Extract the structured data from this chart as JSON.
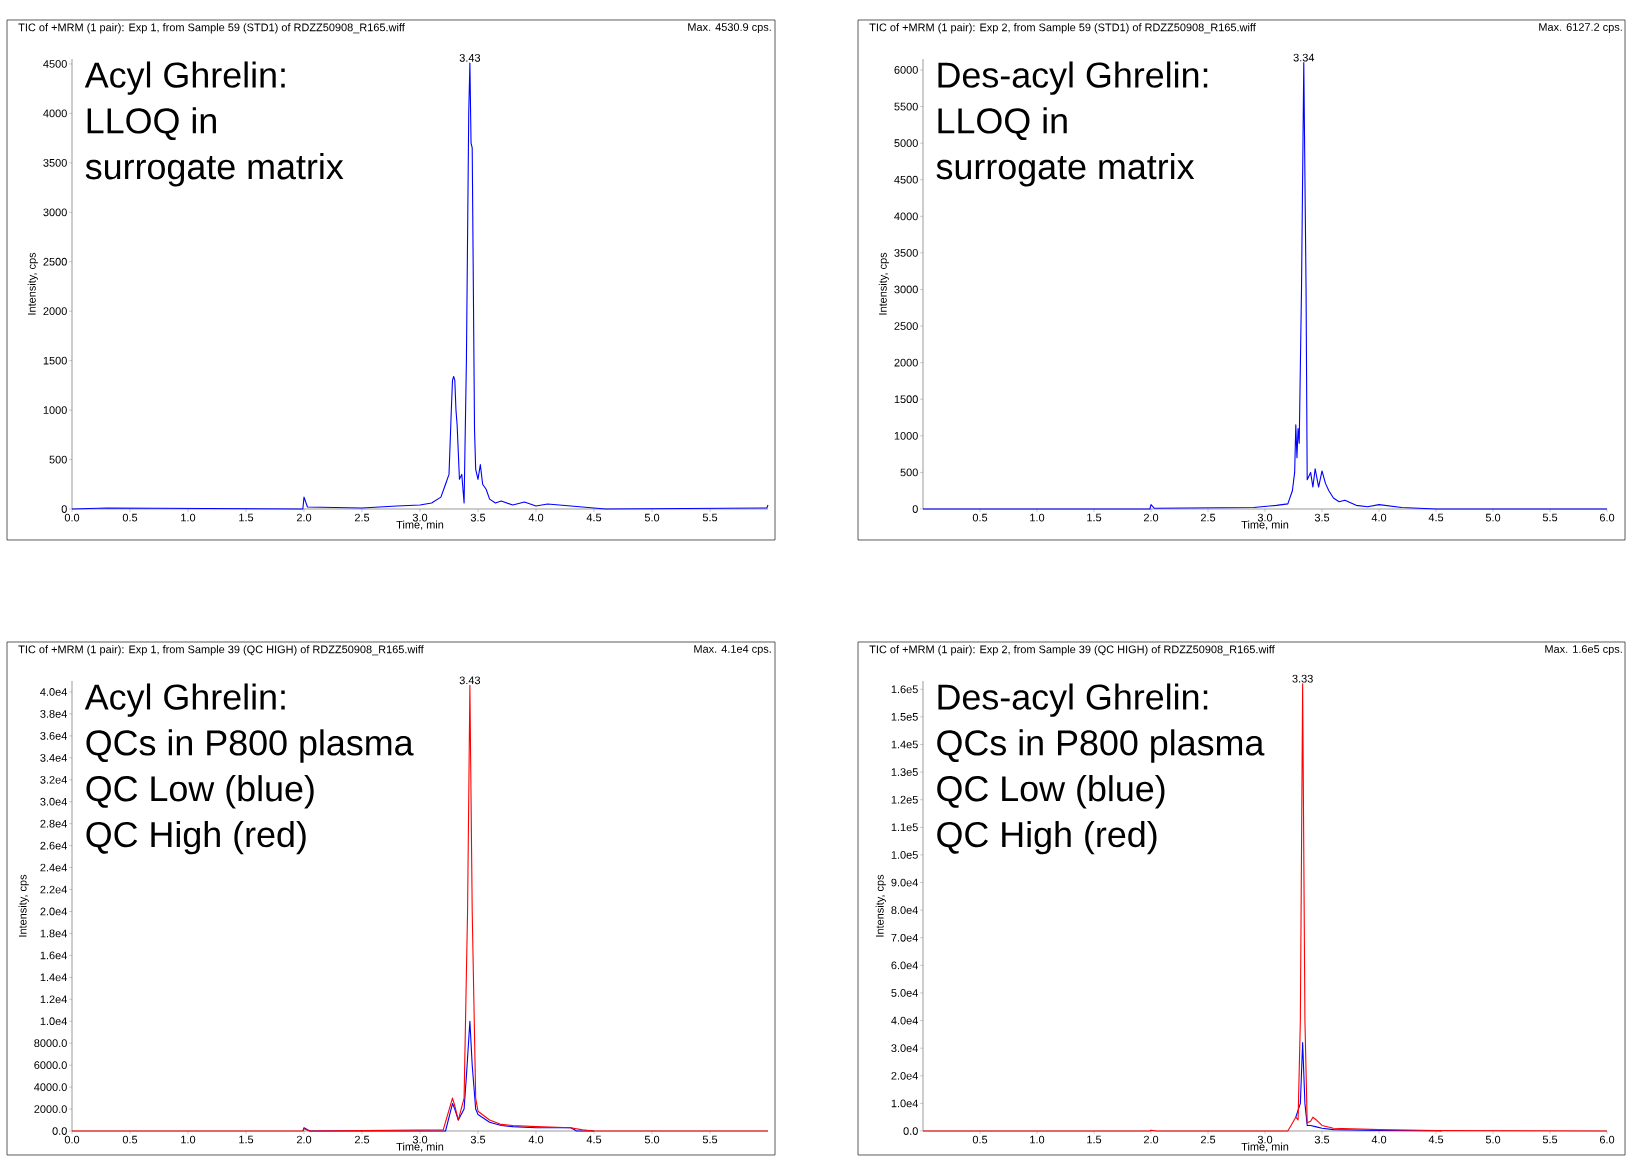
{
  "chart_data": [
    {
      "type": "line",
      "title": "TIC of +MRM (1 pair): Exp 1, from Sample 59 (STD1) of RDZZ50908_R165.wiff",
      "xlabel": "Time, min",
      "ylabel": "Intensity, cps",
      "annotations": [
        "Max. 4530.9 cps.",
        "Acyl Ghrelin:",
        "LLOQ in",
        "surrogate matrix",
        {
          "text": "3.43",
          "x": 3.43,
          "y": 4510
        }
      ],
      "xlim": [
        0,
        6.0
      ],
      "ylim": [
        0,
        4550
      ],
      "xticks": [
        {
          "value": 0,
          "label": "0.0"
        },
        0.5,
        {
          "value": 1,
          "label": "1.0"
        },
        1.5,
        {
          "value": 2,
          "label": "2.0"
        },
        2.5,
        {
          "value": 3,
          "label": "3.0"
        },
        3.5,
        {
          "value": 4,
          "label": "4.0"
        },
        4.5,
        {
          "value": 5,
          "label": "5.0"
        },
        5.5
      ],
      "yticks": [
        0,
        500,
        1000,
        1500,
        2000,
        2500,
        3000,
        3500,
        4000,
        4500
      ],
      "series": [
        {
          "color": "#0000ff",
          "x": [
            0,
            0.3,
            1.99,
            2.0,
            2.03,
            2.5,
            2.8,
            3.0,
            3.1,
            3.18,
            3.22,
            3.25,
            3.27,
            3.28,
            3.29,
            3.3,
            3.31,
            3.32,
            3.34,
            3.36,
            3.38,
            3.4,
            3.42,
            3.43,
            3.44,
            3.45,
            3.47,
            3.48,
            3.5,
            3.52,
            3.54,
            3.57,
            3.6,
            3.65,
            3.7,
            3.8,
            3.9,
            4.0,
            4.1,
            4.4,
            4.6,
            5.99,
            6.0
          ],
          "values": [
            0,
            10,
            0,
            120,
            20,
            10,
            30,
            40,
            60,
            120,
            250,
            350,
            1000,
            1300,
            1340,
            1300,
            1000,
            850,
            300,
            350,
            60,
            1500,
            4000,
            4510,
            3700,
            3650,
            800,
            400,
            300,
            450,
            250,
            200,
            100,
            60,
            80,
            40,
            70,
            30,
            50,
            20,
            0,
            10,
            40
          ]
        }
      ]
    },
    {
      "type": "line",
      "title": "TIC of +MRM (1 pair): Exp 2, from Sample 59 (STD1) of RDZZ50908_R165.wiff",
      "xlabel": "Time, min",
      "ylabel": "Intensity, cps",
      "annotations": [
        "Max. 6127.2 cps.",
        "Des-acyl Ghrelin:",
        "LLOQ in",
        "surrogate matrix",
        {
          "text": "3.34",
          "x": 3.34,
          "y": 6100
        }
      ],
      "xlim": [
        0,
        6.0
      ],
      "ylim": [
        0,
        6150
      ],
      "xticks": [
        0.5,
        {
          "value": 1,
          "label": "1.0"
        },
        1.5,
        {
          "value": 2,
          "label": "2.0"
        },
        2.5,
        {
          "value": 3,
          "label": "3.0"
        },
        3.5,
        {
          "value": 4,
          "label": "4.0"
        },
        4.5,
        {
          "value": 5,
          "label": "5.0"
        },
        5.5,
        {
          "value": 6,
          "label": "6.0"
        }
      ],
      "yticks": [
        0,
        500,
        1000,
        1500,
        2000,
        2500,
        3000,
        3500,
        4000,
        4500,
        5000,
        5500,
        6000
      ],
      "series": [
        {
          "color": "#0000ff",
          "x": [
            0,
            1.99,
            2.0,
            2.03,
            2.9,
            3.1,
            3.2,
            3.24,
            3.26,
            3.27,
            3.28,
            3.29,
            3.3,
            3.32,
            3.34,
            3.36,
            3.37,
            3.4,
            3.42,
            3.44,
            3.47,
            3.5,
            3.53,
            3.56,
            3.6,
            3.65,
            3.7,
            3.8,
            3.9,
            4.0,
            4.2,
            4.5,
            6.0
          ],
          "values": [
            0,
            0,
            60,
            10,
            20,
            50,
            70,
            250,
            500,
            1150,
            700,
            1100,
            900,
            3000,
            6100,
            3000,
            400,
            500,
            300,
            550,
            300,
            520,
            350,
            250,
            150,
            100,
            120,
            50,
            30,
            60,
            20,
            0,
            0
          ]
        }
      ]
    },
    {
      "type": "line",
      "title": "TIC of +MRM (1 pair): Exp 1, from Sample 39 (QC HIGH) of RDZZ50908_R165.wiff",
      "xlabel": "Time, min",
      "ylabel": "Intensity, cps",
      "annotations": [
        "Max. 4.1e4 cps.",
        "Acyl Ghrelin:",
        "QCs in P800 plasma",
        "QC Low (blue)",
        "QC High (red)",
        {
          "text": "3.43",
          "x": 3.43,
          "y": 40600
        }
      ],
      "xlim": [
        0,
        6.0
      ],
      "ylim": [
        0,
        41000
      ],
      "xticks": [
        {
          "value": 0,
          "label": "0.0"
        },
        0.5,
        {
          "value": 1,
          "label": "1.0"
        },
        1.5,
        {
          "value": 2,
          "label": "2.0"
        },
        2.5,
        {
          "value": 3,
          "label": "3.0"
        },
        3.5,
        {
          "value": 4,
          "label": "4.0"
        },
        4.5,
        {
          "value": 5,
          "label": "5.0"
        },
        5.5
      ],
      "yticks": [
        {
          "value": 0,
          "label": "0.0"
        },
        {
          "value": 2000,
          "label": "2000.0"
        },
        {
          "value": 4000,
          "label": "4000.0"
        },
        {
          "value": 6000,
          "label": "6000.0"
        },
        {
          "value": 8000,
          "label": "8000.0"
        },
        {
          "value": 10000,
          "label": "1.0e4"
        },
        {
          "value": 12000,
          "label": "1.2e4"
        },
        {
          "value": 14000,
          "label": "1.4e4"
        },
        {
          "value": 16000,
          "label": "1.6e4"
        },
        {
          "value": 18000,
          "label": "1.8e4"
        },
        {
          "value": 20000,
          "label": "2.0e4"
        },
        {
          "value": 22000,
          "label": "2.2e4"
        },
        {
          "value": 24000,
          "label": "2.4e4"
        },
        {
          "value": 26000,
          "label": "2.6e4"
        },
        {
          "value": 28000,
          "label": "2.8e4"
        },
        {
          "value": 30000,
          "label": "3.0e4"
        },
        {
          "value": 32000,
          "label": "3.2e4"
        },
        {
          "value": 34000,
          "label": "3.4e4"
        },
        {
          "value": 36000,
          "label": "3.6e4"
        },
        {
          "value": 38000,
          "label": "3.8e4"
        },
        {
          "value": 40000,
          "label": "4.0e4"
        }
      ],
      "series": [
        {
          "color": "#0000ff",
          "x": [
            1.99,
            2.0,
            2.05,
            3.22,
            3.28,
            3.3,
            3.33,
            3.38,
            3.4,
            3.43,
            3.45,
            3.48,
            3.5,
            3.6,
            3.7,
            3.8,
            4.0,
            4.3,
            4.35,
            4.5
          ],
          "values": [
            0,
            300,
            0,
            0,
            2500,
            2000,
            1000,
            2000,
            5000,
            10000,
            6000,
            2000,
            1500,
            800,
            500,
            400,
            300,
            300,
            0,
            0
          ]
        },
        {
          "color": "#ff0000",
          "x": [
            0,
            1.99,
            2.0,
            2.05,
            3.2,
            3.28,
            3.3,
            3.33,
            3.38,
            3.41,
            3.43,
            3.45,
            3.48,
            3.5,
            3.6,
            3.7,
            3.8,
            4.0,
            4.3,
            4.4,
            4.5,
            4.55,
            6.0
          ],
          "values": [
            0,
            0,
            200,
            0,
            100,
            3000,
            2300,
            1000,
            3000,
            20000,
            40600,
            20000,
            3000,
            1800,
            1000,
            600,
            500,
            400,
            300,
            100,
            0,
            0,
            0
          ]
        }
      ]
    },
    {
      "type": "line",
      "title": "TIC of +MRM (1 pair): Exp 2, from Sample 39 (QC HIGH) of RDZZ50908_R165.wiff",
      "xlabel": "Time, min",
      "ylabel": "Intensity, cps",
      "annotations": [
        "Max. 1.6e5 cps.",
        "Des-acyl Ghrelin:",
        "QCs in P800 plasma",
        "QC Low (blue)",
        "QC High (red)",
        {
          "text": "3.33",
          "x": 3.33,
          "y": 162000
        }
      ],
      "xlim": [
        0,
        6.0
      ],
      "ylim": [
        0,
        163000
      ],
      "xticks": [
        0.5,
        {
          "value": 1,
          "label": "1.0"
        },
        1.5,
        {
          "value": 2,
          "label": "2.0"
        },
        2.5,
        {
          "value": 3,
          "label": "3.0"
        },
        3.5,
        {
          "value": 4,
          "label": "4.0"
        },
        4.5,
        {
          "value": 5,
          "label": "5.0"
        },
        5.5,
        {
          "value": 6,
          "label": "6.0"
        }
      ],
      "yticks": [
        {
          "value": 0,
          "label": "0.0"
        },
        {
          "value": 10000,
          "label": "1.0e4"
        },
        {
          "value": 20000,
          "label": "2.0e4"
        },
        {
          "value": 30000,
          "label": "3.0e4"
        },
        {
          "value": 40000,
          "label": "4.0e4"
        },
        {
          "value": 50000,
          "label": "5.0e4"
        },
        {
          "value": 60000,
          "label": "6.0e4"
        },
        {
          "value": 70000,
          "label": "7.0e4"
        },
        {
          "value": 80000,
          "label": "8.0e4"
        },
        {
          "value": 90000,
          "label": "9.0e4"
        },
        {
          "value": 100000,
          "label": "1.0e5"
        },
        {
          "value": 110000,
          "label": "1.1e5"
        },
        {
          "value": 120000,
          "label": "1.2e5"
        },
        {
          "value": 130000,
          "label": "1.3e5"
        },
        {
          "value": 140000,
          "label": "1.4e5"
        },
        {
          "value": 150000,
          "label": "1.5e5"
        },
        {
          "value": 160000,
          "label": "1.6e5"
        }
      ],
      "series": [
        {
          "color": "#0000ff",
          "x": [
            3.27,
            3.31,
            3.33,
            3.35,
            3.37,
            3.4,
            3.45,
            3.5,
            3.6,
            4.0,
            4.5,
            4.55
          ],
          "values": [
            5000,
            10000,
            32000,
            10000,
            2000,
            2000,
            1500,
            1000,
            500,
            200,
            100,
            0
          ]
        },
        {
          "color": "#ff0000",
          "x": [
            0,
            1.99,
            2.0,
            2.05,
            3.2,
            3.27,
            3.29,
            3.31,
            3.33,
            3.35,
            3.37,
            3.4,
            3.42,
            3.45,
            3.5,
            3.6,
            4.0,
            4.5,
            6.0
          ],
          "values": [
            0,
            0,
            300,
            0,
            0,
            5000,
            4000,
            40000,
            162000,
            40000,
            3000,
            3500,
            5000,
            4000,
            2000,
            1000,
            500,
            200,
            0
          ]
        }
      ]
    }
  ]
}
